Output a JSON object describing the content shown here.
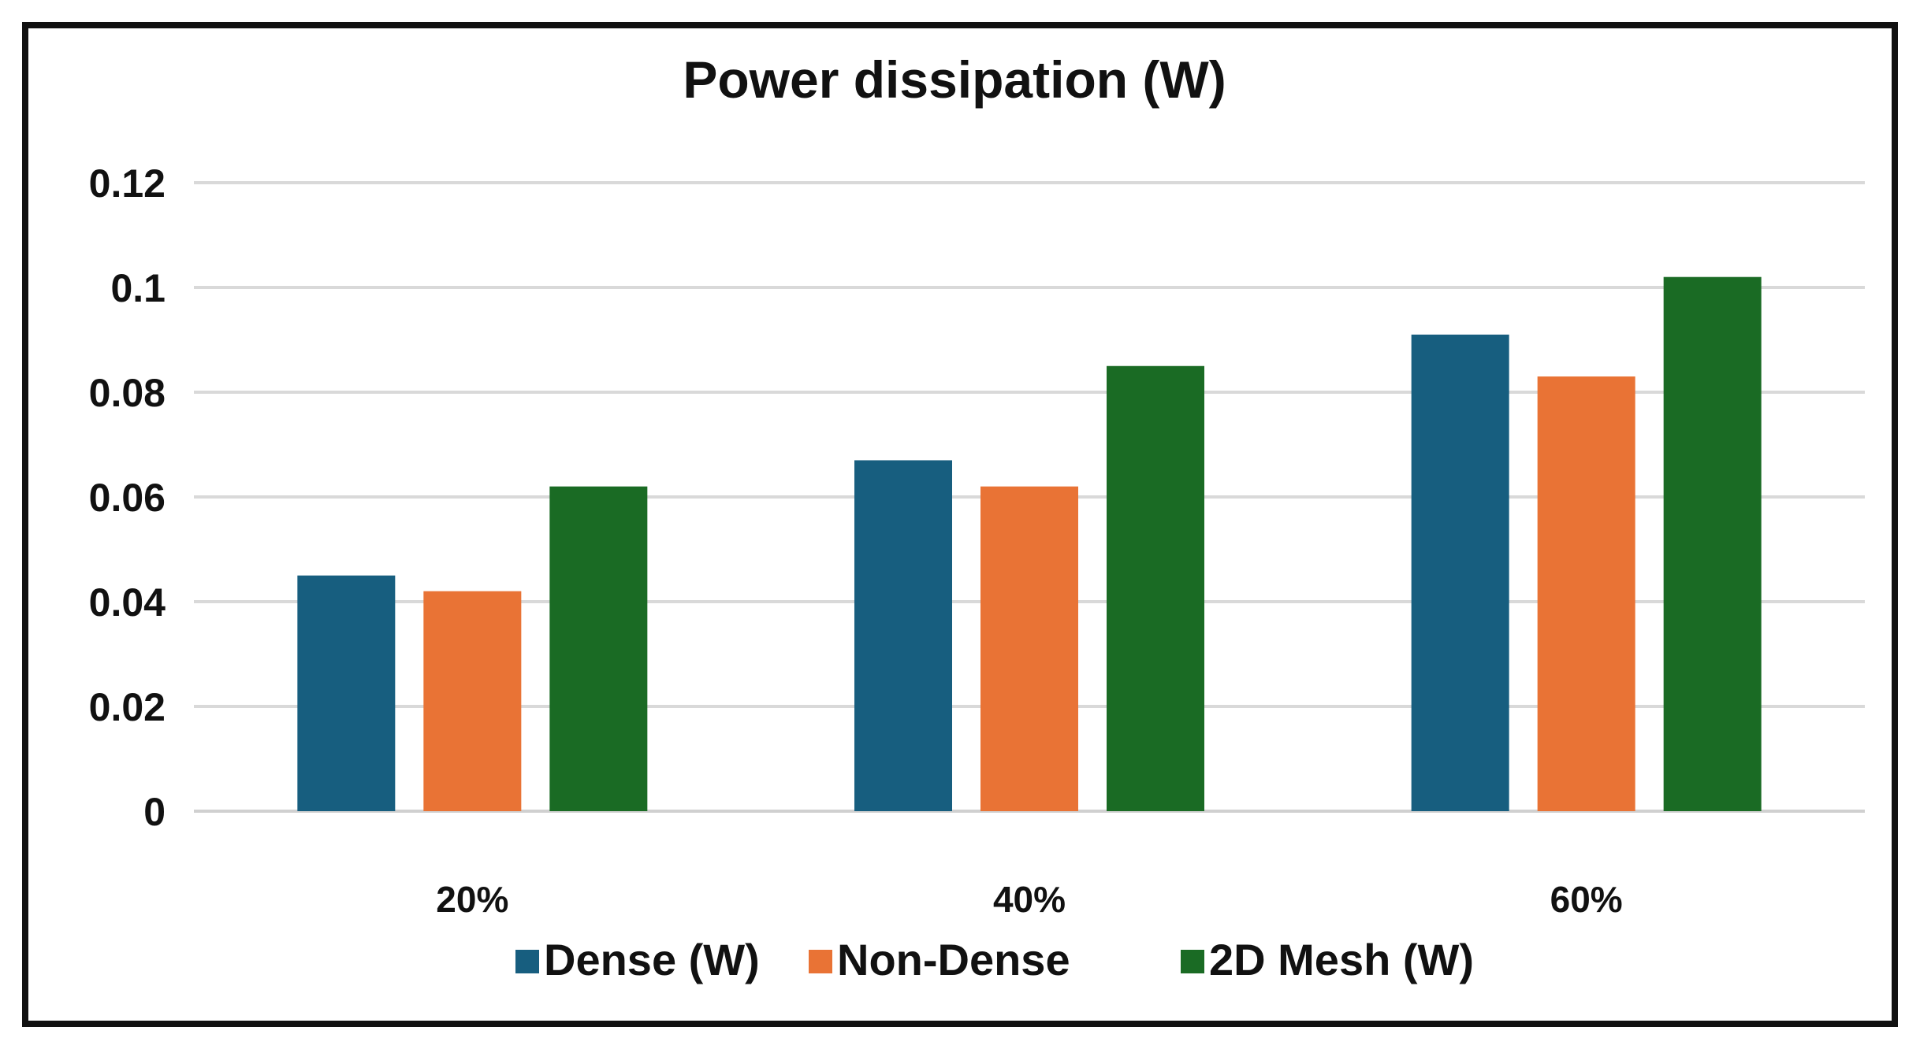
{
  "chart_data": {
    "type": "bar",
    "title": "Power dissipation (W)",
    "xlabel": "",
    "ylabel": "",
    "categories": [
      "20%",
      "40%",
      "60%"
    ],
    "series": [
      {
        "name": "Dense (W)",
        "color": "#175e7f",
        "values": [
          0.045,
          0.067,
          0.091
        ]
      },
      {
        "name": "Non-Dense",
        "color": "#e97335",
        "values": [
          0.042,
          0.062,
          0.083
        ]
      },
      {
        "name": "2D Mesh (W)",
        "color": "#1a6b24",
        "values": [
          0.062,
          0.085,
          0.102
        ]
      }
    ],
    "ylim": [
      0,
      0.12
    ],
    "yticks": [
      "0",
      "0.02",
      "0.04",
      "0.06",
      "0.08",
      "0.1",
      "0.12"
    ],
    "grid": true,
    "legend_position": "bottom"
  }
}
